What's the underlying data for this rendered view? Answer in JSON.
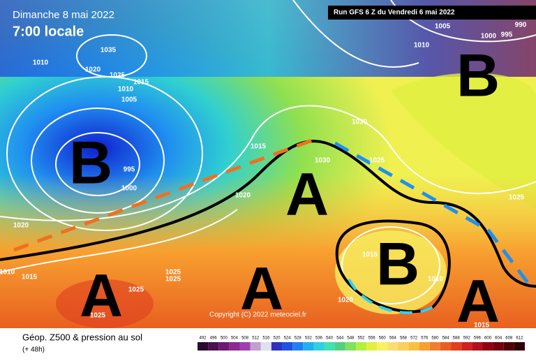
{
  "header": {
    "date": "Dimanche 8 mai 2022",
    "time": "7:00 locale",
    "run": "Run GFS 6 Z du Vendredi 6 mai 2022"
  },
  "systems": [
    "B",
    "B",
    "A",
    "A",
    "A",
    "B",
    "A"
  ],
  "isobar_labels": [
    "1035",
    "1010",
    "1020",
    "1025",
    "1015",
    "1010",
    "1005",
    "995",
    "1000",
    "1020",
    "1010",
    "1015",
    "1025",
    "1025",
    "1025",
    "1025",
    "1015",
    "1030",
    "1020",
    "1030",
    "1025",
    "1005",
    "1010",
    "1000",
    "995",
    "990",
    "1025",
    "1015",
    "1010",
    "1020",
    "1015"
  ],
  "copyright": "Copyright (C) 2022 meteociel.fr",
  "footer": {
    "title": "Géop. Z500 & pression au sol",
    "subtitle": "(+ 48h)"
  },
  "legend": {
    "labels": [
      "492",
      "496",
      "500",
      "504",
      "508",
      "512",
      "516",
      "520",
      "524",
      "528",
      "532",
      "536",
      "540",
      "544",
      "548",
      "552",
      "556",
      "560",
      "564",
      "568",
      "572",
      "576",
      "580",
      "584",
      "588",
      "592",
      "596",
      "600",
      "604",
      "608",
      "612"
    ],
    "colors": [
      "#2a0a2e",
      "#4a1050",
      "#6a1a70",
      "#8a2a90",
      "#a040b0",
      "#c0a0d0",
      "#e0e0f0",
      "#3030c0",
      "#2050e0",
      "#2080f0",
      "#20b0f0",
      "#30d0e0",
      "#40e0b0",
      "#50d080",
      "#80e060",
      "#b0f040",
      "#e0f040",
      "#f8f060",
      "#f8e070",
      "#f8d060",
      "#f8c040",
      "#f8a030",
      "#f08030",
      "#e86020",
      "#e04020",
      "#d02020",
      "#b01020",
      "#900010",
      "#700010",
      "#500008",
      "#300005"
    ]
  }
}
